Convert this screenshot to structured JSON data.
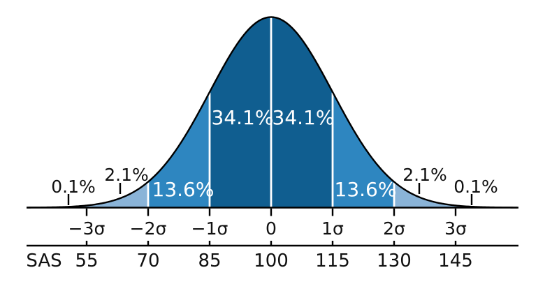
{
  "chart_data": {
    "type": "area",
    "subtype": "normal-distribution-curve",
    "description_visible_text_only": true,
    "mean": 100,
    "standard_deviation": 15,
    "bands": [
      {
        "sigma_range": [
          -4,
          -3
        ],
        "percent": 0.1,
        "label": "0.1%",
        "shade": "tail",
        "label_position": "outside"
      },
      {
        "sigma_range": [
          -3,
          -2
        ],
        "percent": 2.1,
        "label": "2.1%",
        "shade": "tail",
        "label_position": "outside"
      },
      {
        "sigma_range": [
          -2,
          -1
        ],
        "percent": 13.6,
        "label": "13.6%",
        "shade": "outer",
        "label_position": "inside"
      },
      {
        "sigma_range": [
          -1,
          0
        ],
        "percent": 34.1,
        "label": "34.1%",
        "shade": "inner",
        "label_position": "inside"
      },
      {
        "sigma_range": [
          0,
          1
        ],
        "percent": 34.1,
        "label": "34.1%",
        "shade": "inner",
        "label_position": "inside"
      },
      {
        "sigma_range": [
          1,
          2
        ],
        "percent": 13.6,
        "label": "13.6%",
        "shade": "outer",
        "label_position": "inside"
      },
      {
        "sigma_range": [
          2,
          3
        ],
        "percent": 2.1,
        "label": "2.1%",
        "shade": "tail",
        "label_position": "outside"
      },
      {
        "sigma_range": [
          3,
          4
        ],
        "percent": 0.1,
        "label": "0.1%",
        "shade": "tail",
        "label_position": "outside"
      }
    ],
    "sigma_axis": {
      "tick_values": [
        -3,
        -2,
        -1,
        0,
        1,
        2,
        3
      ],
      "ticks": [
        "−3σ",
        "−2σ",
        "−1σ",
        "0",
        "1σ",
        "2σ",
        "3σ"
      ]
    },
    "sas_axis": {
      "label": "SAS",
      "tick_values": [
        55,
        70,
        85,
        100,
        115,
        130,
        145
      ],
      "ticks": [
        "55",
        "70",
        "85",
        "100",
        "115",
        "130",
        "145"
      ]
    },
    "colors": {
      "band_inner_1sigma": "#105e90",
      "band_outer_2sigma": "#2e86c0",
      "band_tail": "#8ab4d8",
      "curve_stroke": "#000000",
      "divider": "#ffffff",
      "axis_stroke": "#000000",
      "label_dark": "#111111",
      "label_light": "#ffffff",
      "background": "#ffffff"
    },
    "layout_hints": {
      "grid": false,
      "legend": false,
      "x_range_sigma": [
        -3.98,
        4.02
      ]
    }
  }
}
